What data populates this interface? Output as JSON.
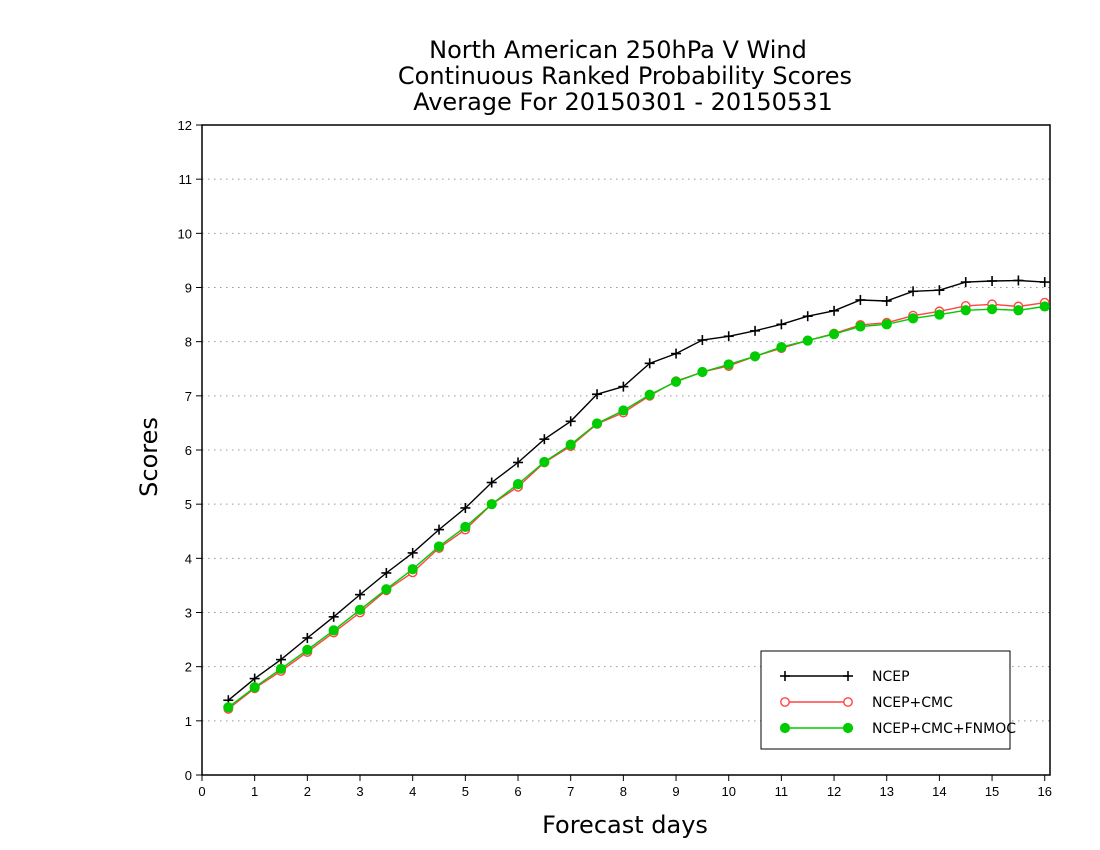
{
  "chart_data": {
    "type": "line",
    "title": [
      "North American 250hPa V Wind",
      "Continuous Ranked Probability Scores",
      "Average For 20150301 - 20150531"
    ],
    "xlabel": "Forecast days",
    "ylabel": "Scores",
    "xlim": [
      0,
      16.1
    ],
    "ylim": [
      0,
      12
    ],
    "xticks": [
      "0",
      "1",
      "2",
      "3",
      "4",
      "5",
      "6",
      "7",
      "8",
      "9",
      "10",
      "11",
      "12",
      "13",
      "14",
      "15",
      "16"
    ],
    "yticks": [
      "0",
      "1",
      "2",
      "3",
      "4",
      "5",
      "6",
      "7",
      "8",
      "9",
      "10",
      "11",
      "12"
    ],
    "grid": true,
    "legend_position": "bottom-right",
    "x": [
      0.5,
      1,
      1.5,
      2,
      2.5,
      3,
      3.5,
      4,
      4.5,
      5,
      5.5,
      6,
      6.5,
      7,
      7.5,
      8,
      8.5,
      9,
      9.5,
      10,
      10.5,
      11,
      11.5,
      12,
      12.5,
      13,
      13.5,
      14,
      14.5,
      15,
      15.5,
      16
    ],
    "series": [
      {
        "name": "NCEP",
        "color": "#000000",
        "marker": "plus",
        "values": [
          1.38,
          1.78,
          2.13,
          2.53,
          2.92,
          3.33,
          3.73,
          4.1,
          4.53,
          4.93,
          5.4,
          5.77,
          6.2,
          6.53,
          7.03,
          7.17,
          7.6,
          7.78,
          8.03,
          8.1,
          8.2,
          8.32,
          8.47,
          8.57,
          8.77,
          8.75,
          8.93,
          8.95,
          9.1,
          9.12,
          9.13,
          9.1
        ]
      },
      {
        "name": "NCEP+CMC",
        "color": "#ff4444",
        "marker": "open-circle",
        "values": [
          1.22,
          1.6,
          1.92,
          2.27,
          2.63,
          3.0,
          3.41,
          3.74,
          4.19,
          4.53,
          5.0,
          5.32,
          5.77,
          6.07,
          6.48,
          6.69,
          7.0,
          7.27,
          7.44,
          7.55,
          7.73,
          7.88,
          8.02,
          8.15,
          8.31,
          8.35,
          8.48,
          8.56,
          8.66,
          8.69,
          8.65,
          8.72
        ]
      },
      {
        "name": "NCEP+CMC+FNMOC",
        "color": "#00cc00",
        "marker": "filled-circle",
        "values": [
          1.25,
          1.62,
          1.96,
          2.31,
          2.67,
          3.05,
          3.43,
          3.8,
          4.22,
          4.58,
          5.0,
          5.37,
          5.78,
          6.1,
          6.49,
          6.73,
          7.02,
          7.26,
          7.44,
          7.58,
          7.73,
          7.9,
          8.02,
          8.14,
          8.28,
          8.32,
          8.43,
          8.5,
          8.58,
          8.6,
          8.58,
          8.65
        ]
      }
    ]
  }
}
